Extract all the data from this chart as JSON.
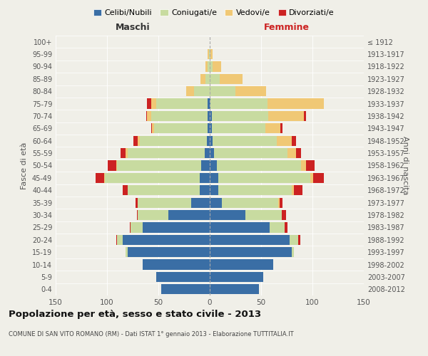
{
  "age_groups": [
    "0-4",
    "5-9",
    "10-14",
    "15-19",
    "20-24",
    "25-29",
    "30-34",
    "35-39",
    "40-44",
    "45-49",
    "50-54",
    "55-59",
    "60-64",
    "65-69",
    "70-74",
    "75-79",
    "80-84",
    "85-89",
    "90-94",
    "95-99",
    "100+"
  ],
  "birth_years": [
    "2008-2012",
    "2003-2007",
    "1998-2002",
    "1993-1997",
    "1988-1992",
    "1983-1987",
    "1978-1982",
    "1973-1977",
    "1968-1972",
    "1963-1967",
    "1958-1962",
    "1953-1957",
    "1948-1952",
    "1943-1947",
    "1938-1942",
    "1933-1937",
    "1928-1932",
    "1923-1927",
    "1918-1922",
    "1913-1917",
    "≤ 1912"
  ],
  "male": {
    "celibe": [
      47,
      52,
      65,
      80,
      85,
      65,
      40,
      18,
      10,
      10,
      8,
      5,
      3,
      2,
      2,
      2,
      0,
      0,
      0,
      0,
      0
    ],
    "coniugato": [
      0,
      0,
      0,
      2,
      5,
      12,
      30,
      52,
      70,
      92,
      82,
      75,
      65,
      52,
      55,
      50,
      15,
      4,
      2,
      1,
      0
    ],
    "vedovo": [
      0,
      0,
      0,
      0,
      0,
      0,
      0,
      0,
      0,
      1,
      1,
      2,
      2,
      2,
      4,
      5,
      8,
      5,
      2,
      1,
      0
    ],
    "divorziato": [
      0,
      0,
      0,
      0,
      1,
      1,
      1,
      2,
      5,
      8,
      8,
      5,
      4,
      1,
      1,
      4,
      0,
      0,
      0,
      0,
      0
    ]
  },
  "female": {
    "nubile": [
      48,
      52,
      62,
      80,
      78,
      58,
      35,
      12,
      8,
      8,
      7,
      4,
      3,
      2,
      2,
      1,
      0,
      0,
      0,
      0,
      0
    ],
    "coniugata": [
      0,
      0,
      0,
      2,
      8,
      15,
      35,
      55,
      72,
      90,
      82,
      72,
      62,
      52,
      55,
      55,
      25,
      10,
      3,
      1,
      0
    ],
    "vedova": [
      0,
      0,
      0,
      0,
      0,
      0,
      0,
      1,
      2,
      3,
      5,
      8,
      15,
      15,
      35,
      55,
      30,
      22,
      8,
      2,
      0
    ],
    "divorziata": [
      0,
      0,
      0,
      0,
      2,
      3,
      4,
      3,
      8,
      10,
      8,
      5,
      4,
      2,
      2,
      0,
      0,
      0,
      0,
      0,
      0
    ]
  },
  "colors": {
    "celibe": "#3a6ea5",
    "coniugato": "#c8dba0",
    "vedovo": "#f0c875",
    "divorziato": "#cc2222"
  },
  "xlim": 150,
  "title": "Popolazione per età, sesso e stato civile - 2013",
  "subtitle": "COMUNE DI SAN VITO ROMANO (RM) - Dati ISTAT 1° gennaio 2013 - Elaborazione TUTTITALIA.IT",
  "xlabel_left": "Maschi",
  "xlabel_right": "Femmine",
  "ylabel_left": "Fasce di età",
  "ylabel_right": "Anni di nascita",
  "bg_color": "#f0efe8",
  "legend_labels": [
    "Celibi/Nubili",
    "Coniugati/e",
    "Vedovi/e",
    "Divorziati/e"
  ]
}
